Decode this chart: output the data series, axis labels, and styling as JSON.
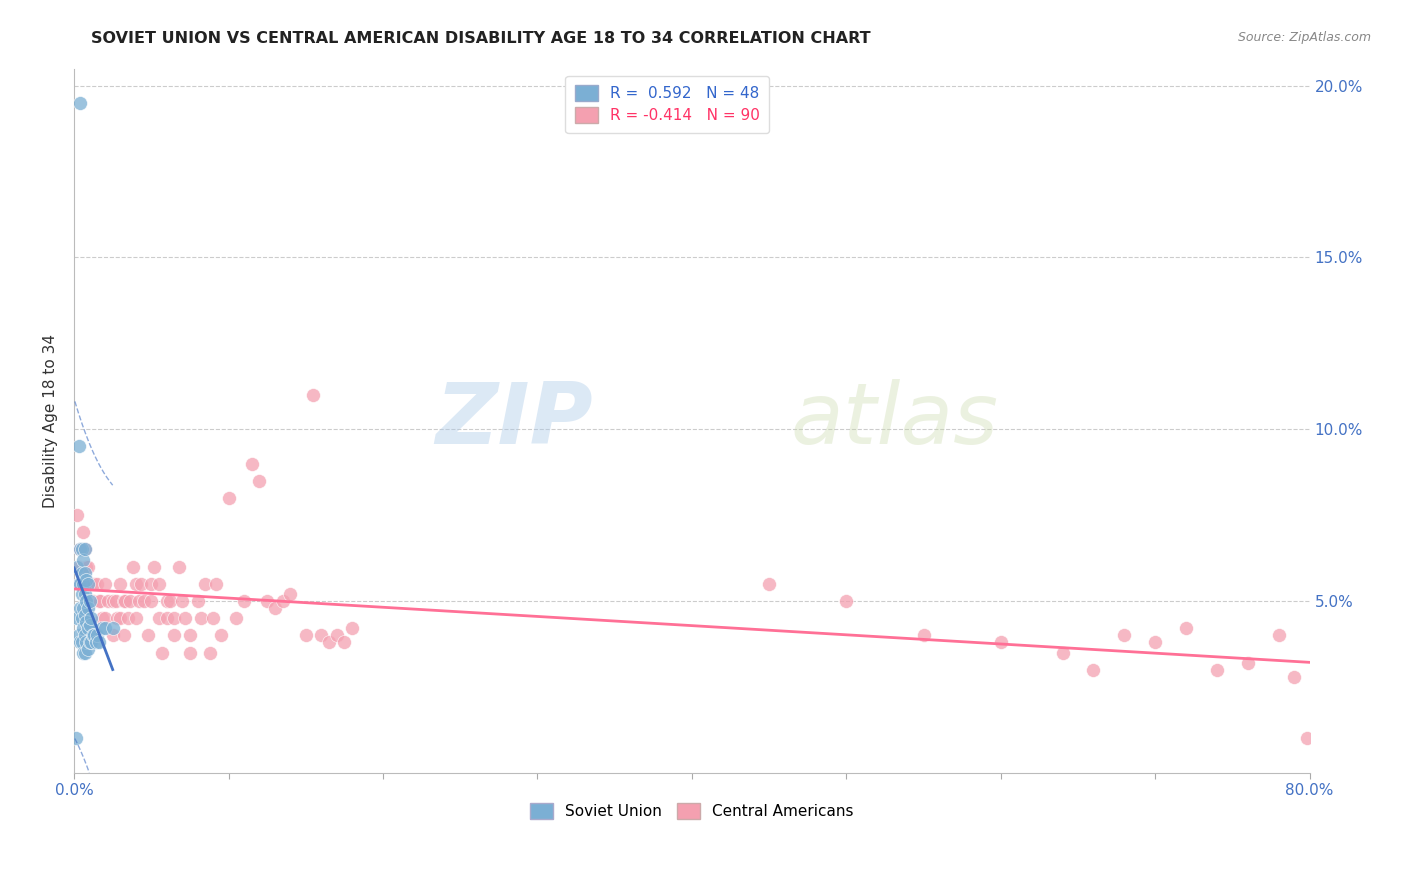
{
  "title": "SOVIET UNION VS CENTRAL AMERICAN DISABILITY AGE 18 TO 34 CORRELATION CHART",
  "source": "Source: ZipAtlas.com",
  "ylabel": "Disability Age 18 to 34",
  "xlim": [
    0.0,
    0.8
  ],
  "ylim": [
    0.0,
    0.205
  ],
  "xticks": [
    0.0,
    0.1,
    0.2,
    0.3,
    0.4,
    0.5,
    0.6,
    0.7,
    0.8
  ],
  "xticklabels": [
    "0.0%",
    "",
    "",
    "",
    "",
    "",
    "",
    "",
    "80.0%"
  ],
  "yticks": [
    0.0,
    0.05,
    0.1,
    0.15,
    0.2
  ],
  "yticklabels_left": [
    "",
    "",
    "",
    "",
    ""
  ],
  "yticklabels_right": [
    "",
    "5.0%",
    "10.0%",
    "15.0%",
    "20.0%"
  ],
  "blue_R": 0.592,
  "blue_N": 48,
  "pink_R": -0.414,
  "pink_N": 90,
  "blue_color": "#7BAFD4",
  "pink_color": "#F4A0B0",
  "blue_line_color": "#4472C4",
  "pink_line_color": "#FF7096",
  "grid_color": "#CCCCCC",
  "watermark_text": "ZIPatlas",
  "blue_scatter_x": [
    0.001,
    0.002,
    0.002,
    0.003,
    0.003,
    0.003,
    0.004,
    0.004,
    0.004,
    0.004,
    0.005,
    0.005,
    0.005,
    0.005,
    0.005,
    0.006,
    0.006,
    0.006,
    0.006,
    0.006,
    0.007,
    0.007,
    0.007,
    0.007,
    0.007,
    0.007,
    0.008,
    0.008,
    0.008,
    0.008,
    0.009,
    0.009,
    0.009,
    0.009,
    0.01,
    0.01,
    0.01,
    0.011,
    0.011,
    0.012,
    0.013,
    0.014,
    0.015,
    0.016,
    0.018,
    0.02,
    0.025,
    0.004
  ],
  "blue_scatter_y": [
    0.01,
    0.045,
    0.06,
    0.04,
    0.055,
    0.095,
    0.038,
    0.048,
    0.055,
    0.065,
    0.038,
    0.045,
    0.052,
    0.058,
    0.065,
    0.035,
    0.042,
    0.048,
    0.055,
    0.062,
    0.035,
    0.04,
    0.046,
    0.052,
    0.058,
    0.065,
    0.038,
    0.044,
    0.05,
    0.056,
    0.036,
    0.042,
    0.048,
    0.055,
    0.038,
    0.043,
    0.05,
    0.038,
    0.045,
    0.04,
    0.04,
    0.038,
    0.04,
    0.038,
    0.042,
    0.042,
    0.042,
    0.195
  ],
  "pink_scatter_x": [
    0.002,
    0.003,
    0.004,
    0.004,
    0.005,
    0.006,
    0.007,
    0.008,
    0.009,
    0.01,
    0.012,
    0.013,
    0.015,
    0.016,
    0.017,
    0.018,
    0.02,
    0.02,
    0.022,
    0.025,
    0.025,
    0.027,
    0.028,
    0.03,
    0.03,
    0.032,
    0.032,
    0.033,
    0.035,
    0.036,
    0.038,
    0.04,
    0.04,
    0.042,
    0.043,
    0.045,
    0.048,
    0.05,
    0.05,
    0.052,
    0.055,
    0.055,
    0.057,
    0.06,
    0.06,
    0.062,
    0.065,
    0.065,
    0.068,
    0.07,
    0.072,
    0.075,
    0.075,
    0.08,
    0.082,
    0.085,
    0.088,
    0.09,
    0.092,
    0.095,
    0.1,
    0.105,
    0.11,
    0.115,
    0.12,
    0.125,
    0.13,
    0.135,
    0.14,
    0.15,
    0.155,
    0.16,
    0.165,
    0.17,
    0.175,
    0.18,
    0.45,
    0.5,
    0.55,
    0.6,
    0.64,
    0.66,
    0.68,
    0.7,
    0.72,
    0.74,
    0.76,
    0.78,
    0.79,
    0.798
  ],
  "pink_scatter_y": [
    0.075,
    0.06,
    0.055,
    0.065,
    0.055,
    0.07,
    0.065,
    0.06,
    0.06,
    0.055,
    0.05,
    0.055,
    0.055,
    0.05,
    0.05,
    0.045,
    0.055,
    0.045,
    0.05,
    0.05,
    0.04,
    0.05,
    0.045,
    0.055,
    0.045,
    0.05,
    0.04,
    0.05,
    0.045,
    0.05,
    0.06,
    0.055,
    0.045,
    0.05,
    0.055,
    0.05,
    0.04,
    0.055,
    0.05,
    0.06,
    0.055,
    0.045,
    0.035,
    0.05,
    0.045,
    0.05,
    0.04,
    0.045,
    0.06,
    0.05,
    0.045,
    0.04,
    0.035,
    0.05,
    0.045,
    0.055,
    0.035,
    0.045,
    0.055,
    0.04,
    0.08,
    0.045,
    0.05,
    0.09,
    0.085,
    0.05,
    0.048,
    0.05,
    0.052,
    0.04,
    0.11,
    0.04,
    0.038,
    0.04,
    0.038,
    0.042,
    0.055,
    0.05,
    0.04,
    0.038,
    0.035,
    0.03,
    0.04,
    0.038,
    0.042,
    0.03,
    0.032,
    0.04,
    0.028,
    0.01
  ],
  "blue_trendline_x0": 0.0,
  "blue_trendline_x1": 0.025,
  "pink_trendline_x0": 0.0,
  "pink_trendline_x1": 0.798
}
